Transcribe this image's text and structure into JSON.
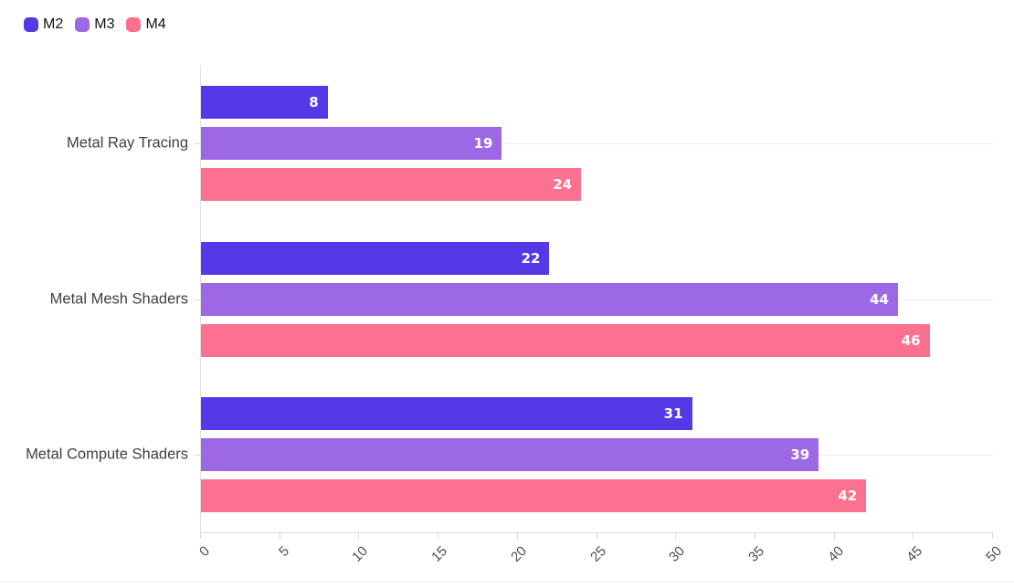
{
  "chart_data": {
    "type": "bar",
    "orientation": "horizontal",
    "title": "",
    "xlabel": "",
    "ylabel": "",
    "categories": [
      "Metal Ray Tracing",
      "Metal Mesh Shaders",
      "Metal Compute Shaders"
    ],
    "series": [
      {
        "name": "M2",
        "color": "#5539E6",
        "values": [
          8,
          22,
          31
        ]
      },
      {
        "name": "M3",
        "color": "#9D68E4",
        "values": [
          19,
          44,
          39
        ]
      },
      {
        "name": "M4",
        "color": "#FC7190",
        "values": [
          24,
          46,
          42
        ]
      }
    ],
    "xlim": [
      0,
      50
    ],
    "x_ticks": [
      0,
      5,
      10,
      15,
      20,
      25,
      30,
      35,
      40,
      45,
      50
    ],
    "x_tick_rotation": -45,
    "grid": "horizontal-category-centerlines",
    "legend_position": "top-left",
    "value_labels": "inside-end"
  },
  "colors": {
    "background": "#ffffff",
    "grid": "#ececec",
    "axis": "#e0e0e0",
    "tick": "#d9d9d9",
    "category_label": "#3f3f3f",
    "tick_label": "#4d4d4d",
    "legend_label": "#111111",
    "value_label": "#ffffff"
  }
}
